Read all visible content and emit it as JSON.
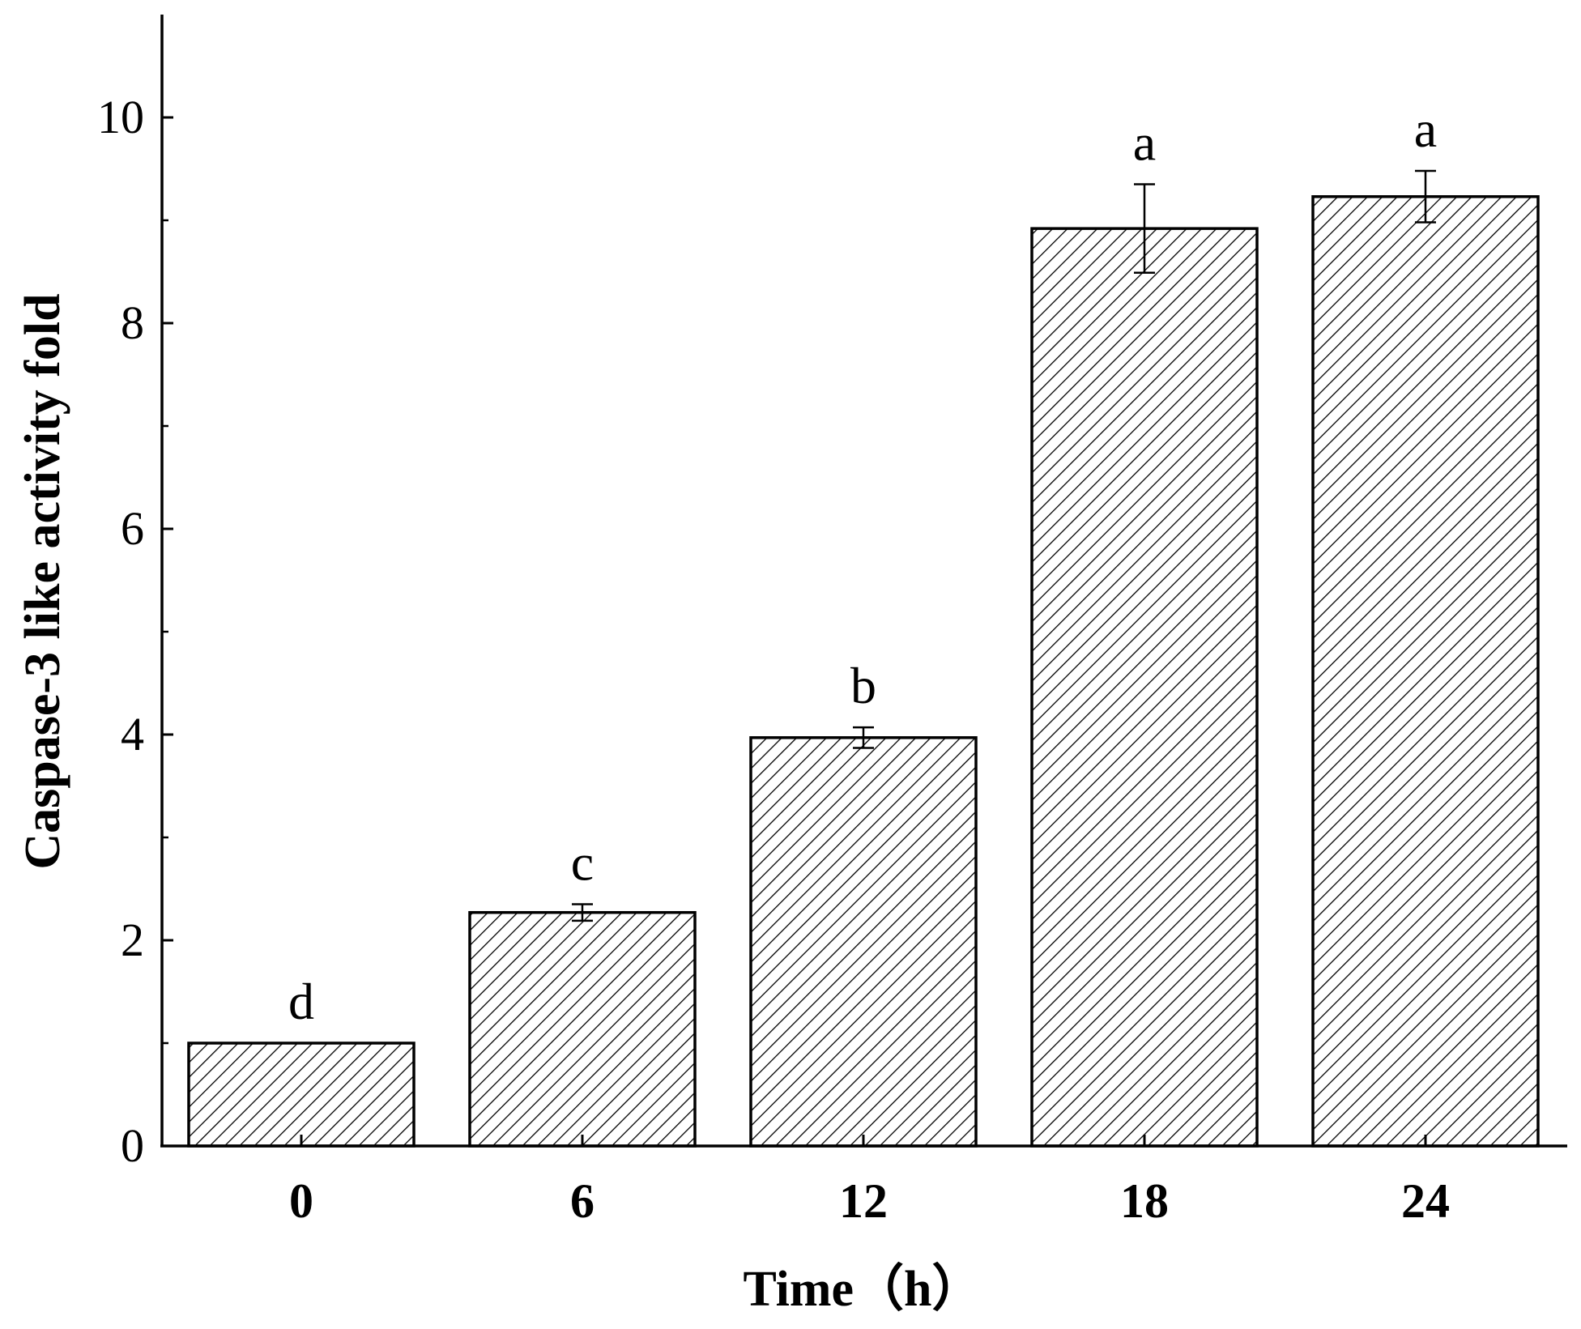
{
  "chart_data": {
    "type": "bar",
    "title": "",
    "xlabel": "Time（h）",
    "ylabel": "Caspase-3 like activity fold",
    "categories": [
      "0",
      "6",
      "12",
      "18",
      "24"
    ],
    "values": [
      1.0,
      2.27,
      3.97,
      8.92,
      9.23
    ],
    "errors": [
      0.0,
      0.08,
      0.1,
      0.43,
      0.25
    ],
    "significance_labels": [
      "d",
      "c",
      "b",
      "a",
      "a"
    ],
    "ylim": [
      0,
      11
    ],
    "yticks": [
      0,
      2,
      4,
      6,
      8,
      10
    ],
    "ytick_labels": [
      "0",
      "2",
      "4",
      "6",
      "8",
      "10"
    ],
    "bar_fill": "diagonal-hatch",
    "bar_color": "#ffffff",
    "edge_color": "#000000",
    "grid": false,
    "legend": "none"
  }
}
